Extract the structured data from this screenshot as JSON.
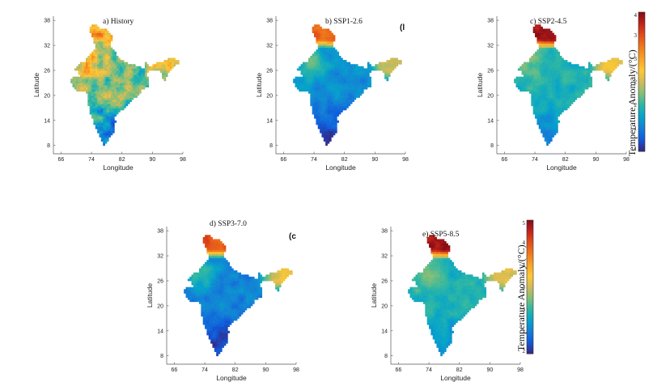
{
  "chart_data": [
    {
      "type": "heatmap",
      "title": "a) History",
      "xlabel": "Longitude",
      "ylabel": "Latitude",
      "x_ticks": [
        "66",
        "74",
        "82",
        "90",
        "98"
      ],
      "y_ticks": [
        "38",
        "32",
        "26",
        "20",
        "14",
        "8"
      ],
      "xlim": [
        64,
        98
      ],
      "ylim": [
        6,
        39
      ],
      "color_range": [
        1,
        4
      ],
      "levels": {
        "south": 1.4,
        "center": 2.2,
        "northwest": 2.8,
        "northeast": 2.6,
        "himalaya": 2.9
      },
      "noise": 0.45
    },
    {
      "type": "heatmap",
      "title": "b) SSP1-2.6",
      "xlabel": "Longitude",
      "ylabel": "Latitude",
      "x_ticks": [
        "66",
        "74",
        "82",
        "90",
        "98"
      ],
      "y_ticks": [
        "38",
        "32",
        "26",
        "20",
        "14",
        "8"
      ],
      "xlim": [
        64,
        98
      ],
      "ylim": [
        6,
        39
      ],
      "color_range": [
        1,
        4
      ],
      "levels": {
        "south": 1.1,
        "center": 1.6,
        "northwest": 2.1,
        "northeast": 2.5,
        "himalaya": 3.4
      },
      "noise": 0.15,
      "edge_fragment": "(l"
    },
    {
      "type": "heatmap",
      "title": "c) SSP2-4.5",
      "xlabel": "Longitude",
      "ylabel": "Latitude",
      "x_ticks": [
        "66",
        "74",
        "82",
        "90",
        "98"
      ],
      "y_ticks": [
        "38",
        "32",
        "26",
        "20",
        "14",
        "8"
      ],
      "xlim": [
        64,
        98
      ],
      "ylim": [
        6,
        39
      ],
      "color_range": [
        1,
        4
      ],
      "levels": {
        "south": 1.5,
        "center": 1.9,
        "northwest": 2.2,
        "northeast": 2.7,
        "himalaya": 3.9
      },
      "noise": 0.15
    },
    {
      "type": "heatmap",
      "title": "d) SSP3-7.0",
      "xlabel": "Longitude",
      "ylabel": "Latitude",
      "x_ticks": [
        "66",
        "74",
        "82",
        "90",
        "98"
      ],
      "y_ticks": [
        "38",
        "32",
        "26",
        "20",
        "14",
        "8"
      ],
      "xlim": [
        64,
        98
      ],
      "ylim": [
        6,
        39
      ],
      "color_range": [
        1,
        4
      ],
      "levels": {
        "south": 1.1,
        "center": 1.5,
        "northwest": 2.0,
        "northeast": 2.6,
        "himalaya": 3.5
      },
      "noise": 0.15,
      "edge_fragment": "(c"
    },
    {
      "type": "heatmap",
      "title": "e) SSP5-8.5",
      "xlabel": "Longitude",
      "ylabel": "Latitude",
      "x_ticks": [
        "66",
        "74",
        "82",
        "90",
        "98"
      ],
      "y_ticks": [
        "38",
        "32",
        "26",
        "20",
        "14",
        "8"
      ],
      "xlim": [
        64,
        98
      ],
      "ylim": [
        6,
        39
      ],
      "color_range": [
        2,
        5
      ],
      "levels": {
        "south": 2.6,
        "center": 2.9,
        "northwest": 3.2,
        "northeast": 3.6,
        "himalaya": 4.9
      },
      "noise": 0.15
    }
  ],
  "colorbars": [
    {
      "label": "Temperature Anomaly/(°C)",
      "ticks": [
        "4",
        "3",
        "3",
        "2",
        "2",
        "1",
        "1"
      ],
      "range": [
        1,
        4
      ]
    },
    {
      "label": "Temperature Anomaly/(°C)",
      "ticks": [
        "5",
        "4",
        "4",
        "3",
        "3",
        "2",
        "2"
      ],
      "range": [
        2,
        5
      ]
    }
  ],
  "colormap": [
    "#352a87",
    "#0f5cdd",
    "#1481d6",
    "#06a4ca",
    "#2eb7a4",
    "#87bf77",
    "#d1bb59",
    "#fec832",
    "#f9a228",
    "#f07c1c",
    "#e4511a",
    "#c5261b",
    "#8b0d16"
  ]
}
